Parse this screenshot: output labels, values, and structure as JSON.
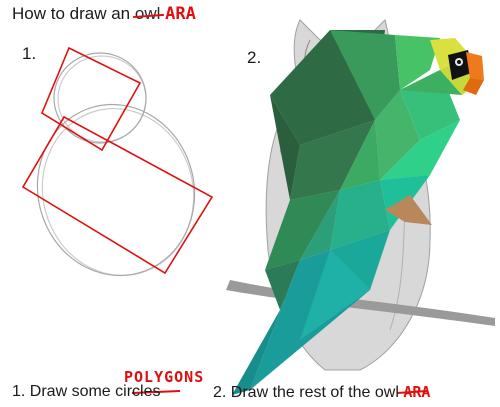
{
  "title": {
    "prefix": "How to draw an",
    "struck_word": "owl",
    "replacement": "ARA"
  },
  "steps": {
    "step1": "1.",
    "step2": "2."
  },
  "captions": {
    "first": {
      "prefix": "1. Draw some",
      "struck_word": "circles",
      "replacement": "POLYGONS"
    },
    "second": {
      "prefix": "2. Draw the rest of the",
      "struck_word": "owl",
      "replacement": "ARA"
    }
  },
  "colors": {
    "annotation_red": "#e01010",
    "parrot_dark_green": "#2e6b45",
    "parrot_green": "#3fbf6a",
    "parrot_teal": "#1aa89a",
    "parrot_yellow": "#d9e040",
    "beak_orange": "#f07a1a",
    "sketch_gray": "#9a9a9a"
  }
}
